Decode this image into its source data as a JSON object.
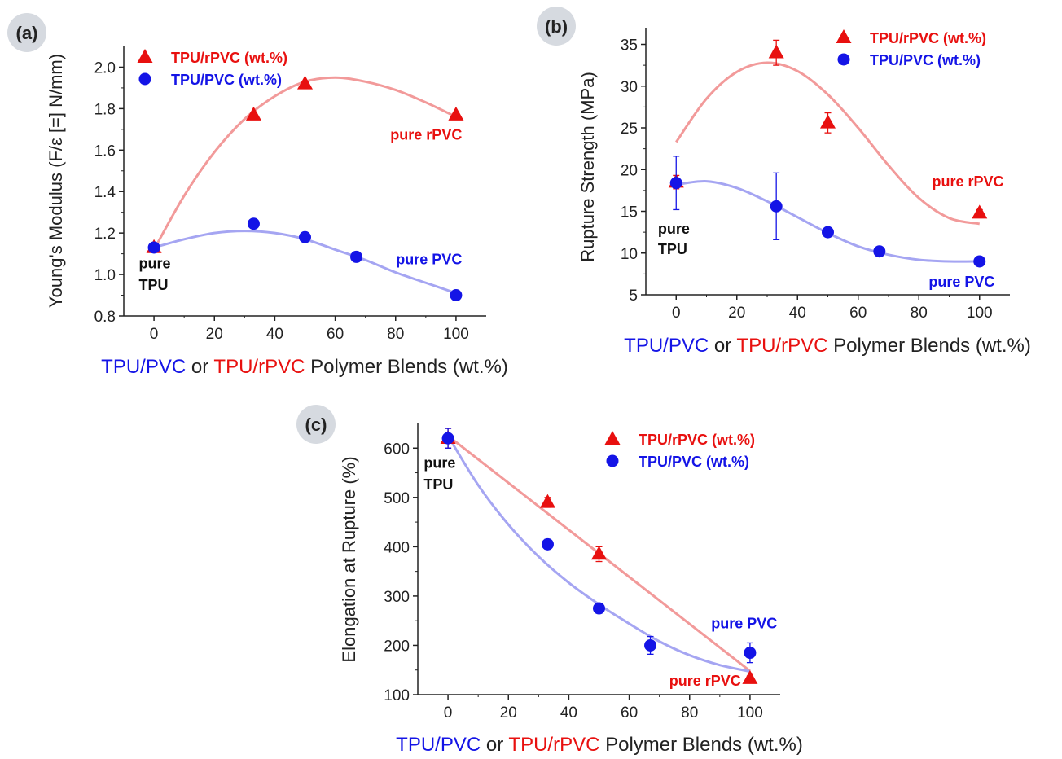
{
  "colors": {
    "rpvc": "#e8100f",
    "pvc": "#1414e6",
    "rpvc_fit": "#f29a9a",
    "pvc_fit": "#a5a5f2",
    "badge": "#d6dae0",
    "axis": "#222222"
  },
  "xlabel_parts": [
    "TPU/PVC",
    " or ",
    "TPU/rPVC",
    " Polymer Blends (wt.%)"
  ],
  "chart_data": [
    {
      "panel": "(a)",
      "type": "scatter",
      "ylabel": "Young's Modulus (F/ε [=] N/mm)",
      "xlabel": "TPU/PVC or TPU/rPVC Polymer Blends (wt.%)",
      "xlim": [
        -10,
        110
      ],
      "ylim": [
        0.8,
        2.1
      ],
      "xticks": [
        0,
        20,
        40,
        60,
        80,
        100
      ],
      "yticks": [
        0.8,
        1.0,
        1.2,
        1.4,
        1.6,
        1.8,
        2.0
      ],
      "ytick_labels": [
        "0.8",
        "1.0",
        "1.2",
        "1.4",
        "1.6",
        "1.8",
        "2.0"
      ],
      "legend": [
        "TPU/rPVC (wt.%)",
        "TPU/PVC (wt.%)"
      ],
      "annotations": [
        {
          "lines": [
            "pure",
            "TPU"
          ],
          "color": "black",
          "anchor": "start",
          "x": -5,
          "y": 1.03,
          "line_step": 0.105
        },
        {
          "lines": [
            "pure rPVC"
          ],
          "color": "rpvc",
          "anchor": "end",
          "x": 102,
          "y": 1.65,
          "line_step": 0
        },
        {
          "lines": [
            "pure PVC"
          ],
          "color": "pvc",
          "anchor": "end",
          "x": 102,
          "y": 1.05,
          "line_step": 0
        }
      ],
      "series": [
        {
          "name": "TPU/rPVC (wt.%)",
          "marker": "triangle",
          "color": "rpvc",
          "x": [
            0,
            33,
            50,
            100
          ],
          "y": [
            1.13,
            1.77,
            1.92,
            1.77
          ],
          "err": [
            0,
            0,
            0,
            0
          ],
          "fit_x": [
            0,
            10,
            20,
            30,
            40,
            50,
            60,
            70,
            80,
            90,
            100
          ],
          "fit_y": [
            1.12,
            1.38,
            1.59,
            1.75,
            1.86,
            1.93,
            1.95,
            1.93,
            1.89,
            1.83,
            1.76
          ]
        },
        {
          "name": "TPU/PVC (wt.%)",
          "marker": "circle",
          "color": "pvc",
          "x": [
            0,
            33,
            50,
            67,
            100
          ],
          "y": [
            1.13,
            1.245,
            1.18,
            1.085,
            0.9
          ],
          "err": [
            0,
            0,
            0,
            0,
            0
          ],
          "fit_x": [
            0,
            10,
            20,
            30,
            40,
            50,
            60,
            70,
            80,
            90,
            100
          ],
          "fit_y": [
            1.13,
            1.17,
            1.2,
            1.21,
            1.2,
            1.17,
            1.12,
            1.07,
            1.01,
            0.96,
            0.91
          ]
        }
      ]
    },
    {
      "panel": "(b)",
      "type": "scatter",
      "ylabel": "Rupture Strength (MPa)",
      "xlabel": "TPU/PVC or TPU/rPVC Polymer Blends (wt.%)",
      "xlim": [
        -10,
        110
      ],
      "ylim": [
        5,
        37
      ],
      "xticks": [
        0,
        20,
        40,
        60,
        80,
        100
      ],
      "yticks": [
        5,
        10,
        15,
        20,
        25,
        30,
        35
      ],
      "ytick_labels": [
        "5",
        "10",
        "15",
        "20",
        "25",
        "30",
        "35"
      ],
      "legend": [
        "TPU/rPVC (wt.%)",
        "TPU/PVC (wt.%)"
      ],
      "annotations": [
        {
          "lines": [
            "pure",
            "TPU"
          ],
          "color": "black",
          "anchor": "start",
          "x": -6,
          "y": 12.3,
          "line_step": 2.4
        },
        {
          "lines": [
            "pure rPVC"
          ],
          "color": "rpvc",
          "anchor": "end",
          "x": 108,
          "y": 18.0,
          "line_step": 0
        },
        {
          "lines": [
            "pure PVC"
          ],
          "color": "pvc",
          "anchor": "end",
          "x": 105,
          "y": 6.0,
          "line_step": 0
        }
      ],
      "series": [
        {
          "name": "TPU/rPVC (wt.%)",
          "marker": "triangle",
          "color": "rpvc",
          "x": [
            0,
            33,
            50,
            100
          ],
          "y": [
            18.5,
            34.0,
            25.6,
            14.8
          ],
          "err": [
            0.8,
            1.5,
            1.2,
            0.4
          ],
          "fit_x": [
            0,
            10,
            20,
            30,
            40,
            50,
            60,
            70,
            80,
            90,
            100
          ],
          "fit_y": [
            23.3,
            28.5,
            31.7,
            32.8,
            31.8,
            29.0,
            25.0,
            20.5,
            16.6,
            14.2,
            13.5
          ]
        },
        {
          "name": "TPU/PVC (wt.%)",
          "marker": "circle",
          "color": "pvc",
          "x": [
            0,
            33,
            50,
            67,
            100
          ],
          "y": [
            18.4,
            15.6,
            12.5,
            10.2,
            9.0
          ],
          "err": [
            3.2,
            4.0,
            0.3,
            0.3,
            0.3
          ],
          "fit_x": [
            0,
            10,
            20,
            30,
            40,
            50,
            60,
            70,
            80,
            90,
            100
          ],
          "fit_y": [
            18.2,
            18.6,
            17.8,
            16.2,
            14.3,
            12.4,
            10.8,
            9.8,
            9.2,
            9.0,
            9.0
          ]
        }
      ]
    },
    {
      "panel": "(c)",
      "type": "scatter",
      "ylabel": "Elongation at Rupture (%)",
      "xlabel": "TPU/PVC or TPU/rPVC Polymer Blends (wt.%)",
      "xlim": [
        -10,
        110
      ],
      "ylim": [
        100,
        650
      ],
      "xticks": [
        0,
        20,
        40,
        60,
        80,
        100
      ],
      "yticks": [
        100,
        200,
        300,
        400,
        500,
        600
      ],
      "ytick_labels": [
        "100",
        "200",
        "300",
        "400",
        "500",
        "600"
      ],
      "legend": [
        "TPU/rPVC (wt.%)",
        "TPU/PVC (wt.%)"
      ],
      "annotations": [
        {
          "lines": [
            "pure",
            "TPU"
          ],
          "color": "black",
          "anchor": "start",
          "x": -8,
          "y": 560,
          "line_step": 44
        },
        {
          "lines": [
            "pure PVC"
          ],
          "color": "pvc",
          "anchor": "end",
          "x": 109,
          "y": 235,
          "line_step": 0
        },
        {
          "lines": [
            "pure rPVC"
          ],
          "color": "rpvc",
          "anchor": "end",
          "x": 97,
          "y": 118,
          "line_step": 0
        }
      ],
      "series": [
        {
          "name": "TPU/rPVC (wt.%)",
          "marker": "triangle",
          "color": "rpvc",
          "x": [
            0,
            33,
            50,
            100
          ],
          "y": [
            620,
            490,
            385,
            133
          ],
          "err": [
            20,
            10,
            15,
            5
          ],
          "fit_x": [
            0,
            100
          ],
          "fit_y": [
            625,
            148
          ]
        },
        {
          "name": "TPU/PVC (wt.%)",
          "marker": "circle",
          "color": "pvc",
          "x": [
            0,
            33,
            50,
            67,
            100
          ],
          "y": [
            620,
            405,
            275,
            200,
            185
          ],
          "err": [
            20,
            10,
            5,
            18,
            20
          ],
          "fit_x": [
            0,
            10,
            20,
            30,
            40,
            50,
            60,
            70,
            80,
            90,
            100
          ],
          "fit_y": [
            625,
            525,
            445,
            380,
            327,
            283,
            244,
            208,
            180,
            160,
            147
          ]
        }
      ]
    }
  ]
}
